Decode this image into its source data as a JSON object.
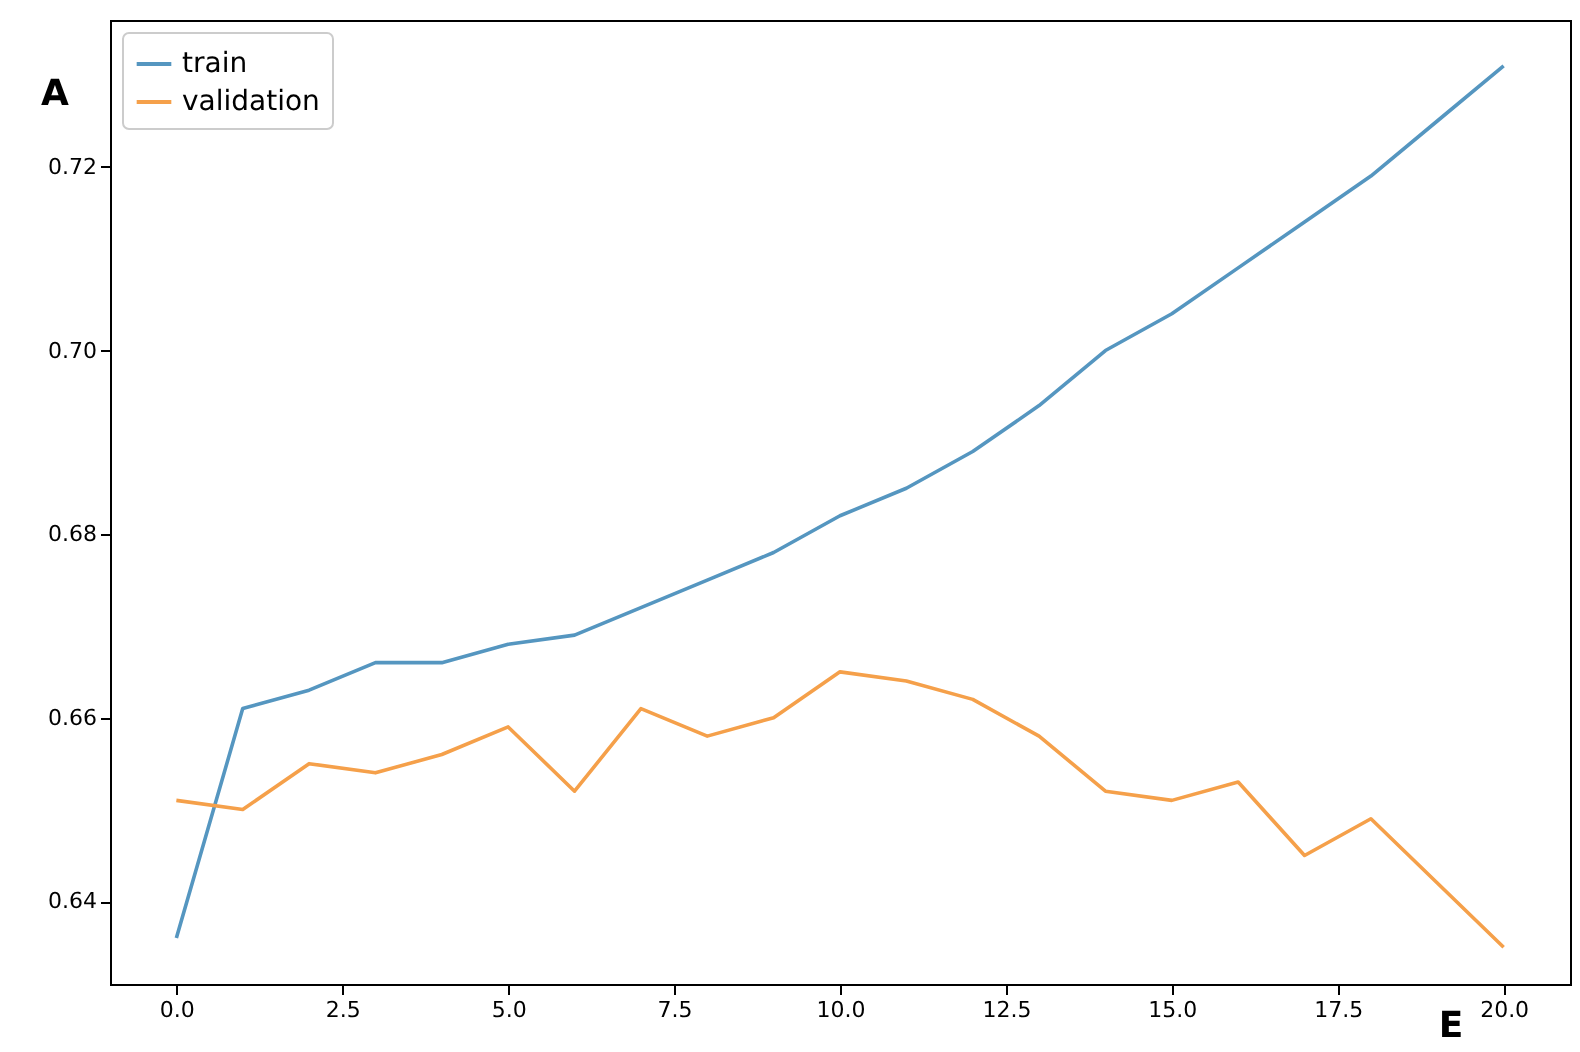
{
  "chart_data": {
    "type": "line",
    "xlabel": "E",
    "ylabel": "A",
    "x": [
      0,
      1,
      2,
      3,
      4,
      5,
      6,
      7,
      8,
      9,
      10,
      11,
      12,
      13,
      14,
      15,
      16,
      17,
      18,
      19,
      20
    ],
    "series": [
      {
        "name": "train",
        "color": "#5596c0",
        "values": [
          0.636,
          0.661,
          0.663,
          0.666,
          0.666,
          0.668,
          0.669,
          0.672,
          0.675,
          0.678,
          0.682,
          0.685,
          0.689,
          0.694,
          0.7,
          0.704,
          0.709,
          0.714,
          0.719,
          0.725,
          0.731
        ]
      },
      {
        "name": "validation",
        "color": "#f5a04a",
        "values": [
          0.651,
          0.65,
          0.655,
          0.654,
          0.656,
          0.659,
          0.652,
          0.661,
          0.658,
          0.66,
          0.665,
          0.664,
          0.662,
          0.658,
          0.652,
          0.651,
          0.653,
          0.645,
          0.649,
          0.642,
          0.635
        ]
      }
    ],
    "xlim": [
      -1,
      21
    ],
    "ylim": [
      0.631,
      0.736
    ],
    "xticks": [
      {
        "value": 0,
        "label": "0.0"
      },
      {
        "value": 2.5,
        "label": "2.5"
      },
      {
        "value": 5,
        "label": "5.0"
      },
      {
        "value": 7.5,
        "label": "7.5"
      },
      {
        "value": 10,
        "label": "10.0"
      },
      {
        "value": 12.5,
        "label": "12.5"
      },
      {
        "value": 15,
        "label": "15.0"
      },
      {
        "value": 17.5,
        "label": "17.5"
      },
      {
        "value": 20,
        "label": "20.0"
      }
    ],
    "yticks": [
      0.64,
      0.66,
      0.68,
      {
        "value": 0.7,
        "label": "0.70"
      },
      0.72
    ],
    "legend": "top left",
    "grid": false,
    "marker": "none",
    "line_style": "solid"
  }
}
